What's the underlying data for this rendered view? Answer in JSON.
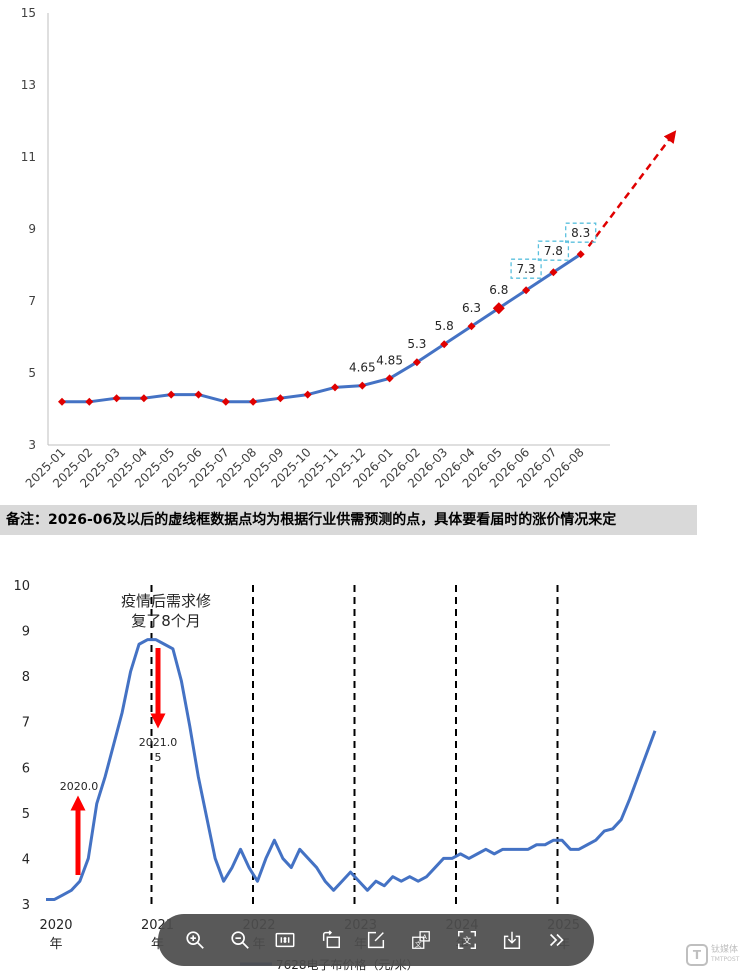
{
  "chart_data": [
    {
      "type": "line",
      "x": [
        "2025-01",
        "2025-02",
        "2025-03",
        "2025-04",
        "2025-05",
        "2025-06",
        "2025-07",
        "2025-08",
        "2025-09",
        "2025-10",
        "2025-11",
        "2025-12",
        "2026-01",
        "2026-02",
        "2026-03",
        "2026-04",
        "2026-05",
        "2026-06",
        "2026-07",
        "2026-08"
      ],
      "y": [
        4.2,
        4.2,
        4.3,
        4.3,
        4.4,
        4.4,
        4.2,
        4.2,
        4.3,
        4.4,
        4.6,
        4.65,
        4.85,
        5.3,
        5.8,
        6.3,
        6.8,
        7.3,
        7.8,
        8.3
      ],
      "data_labels": [
        "",
        "",
        "",
        "",
        "",
        "",
        "",
        "",
        "",
        "",
        "",
        "4.65",
        "4.85",
        "5.3",
        "5.8",
        "6.3",
        "6.8",
        "7.3",
        "7.8",
        "8.3"
      ],
      "boxed_labels": [
        "2026-06",
        "2026-07",
        "2026-08"
      ],
      "highlight_point": "2026-05",
      "ylim": [
        3,
        15
      ],
      "yticks": [
        "3",
        "5",
        "7",
        "9",
        "11",
        "13",
        "15"
      ],
      "grid": false,
      "series_color": "#4472c4",
      "marker_color": "#e00000",
      "trend_arrow_color": "#e00000",
      "box_color": "#5bc0de"
    },
    {
      "type": "line",
      "x_start": 2020,
      "x_end": 2026,
      "values": [
        3.1,
        3.1,
        3.2,
        3.3,
        3.5,
        4.0,
        5.2,
        5.8,
        6.5,
        7.2,
        8.1,
        8.7,
        8.8,
        8.8,
        8.7,
        8.6,
        7.9,
        6.9,
        5.8,
        4.9,
        4.0,
        3.5,
        3.8,
        4.2,
        3.8,
        3.5,
        4.0,
        4.4,
        4.0,
        3.8,
        4.2,
        4.0,
        3.8,
        3.5,
        3.3,
        3.5,
        3.7,
        3.5,
        3.3,
        3.5,
        3.4,
        3.6,
        3.5,
        3.6,
        3.5,
        3.6,
        3.8,
        4.0,
        4.0,
        4.1,
        4.0,
        4.1,
        4.2,
        4.1,
        4.2,
        4.2,
        4.2,
        4.2,
        4.3,
        4.3,
        4.4,
        4.4,
        4.2,
        4.2,
        4.3,
        4.4,
        4.6,
        4.65,
        4.85,
        5.3,
        5.8,
        6.3,
        6.8
      ],
      "ylim": [
        3,
        10
      ],
      "yticks": [
        "3",
        "4",
        "5",
        "6",
        "7",
        "8",
        "9",
        "10"
      ],
      "xtick_labels": [
        {
          "line1": "2020",
          "line2": "年"
        },
        {
          "line1": "2021",
          "line2": "年"
        },
        {
          "line1": "2022",
          "line2": "年"
        },
        {
          "line1": "2023",
          "line2": "年"
        },
        {
          "line1": "2024",
          "line2": "年"
        },
        {
          "line1": "2025",
          "line2": "年"
        }
      ],
      "year_dividers": [
        2021,
        2022,
        2023,
        2024,
        2025
      ],
      "annotations": {
        "up_arrow_label": "2020.0",
        "down_arrow_label_line1": "2021.0",
        "down_arrow_label_line2": "5",
        "recovery_line1": "疫情后需求修",
        "recovery_line2": "复了8个月"
      },
      "legend_label": "7628电子布价格（元/米）",
      "series_color": "#4472c4",
      "arrow_color": "#ff0000"
    }
  ],
  "note": "备注：2026-06及以后的虚线框数据点均为根据行业供需预测的点，具体要看届时的涨价情况来定",
  "toolbar": {
    "icons": [
      "zoom-in-icon",
      "zoom-out-icon",
      "actual-size-icon",
      "rotate-icon",
      "edit-icon",
      "translate-image-icon",
      "extract-text-icon",
      "download-icon",
      "more-icon"
    ]
  },
  "watermark": {
    "mark": "T",
    "line1": "钛媒体",
    "line2": "TMTPOST"
  }
}
